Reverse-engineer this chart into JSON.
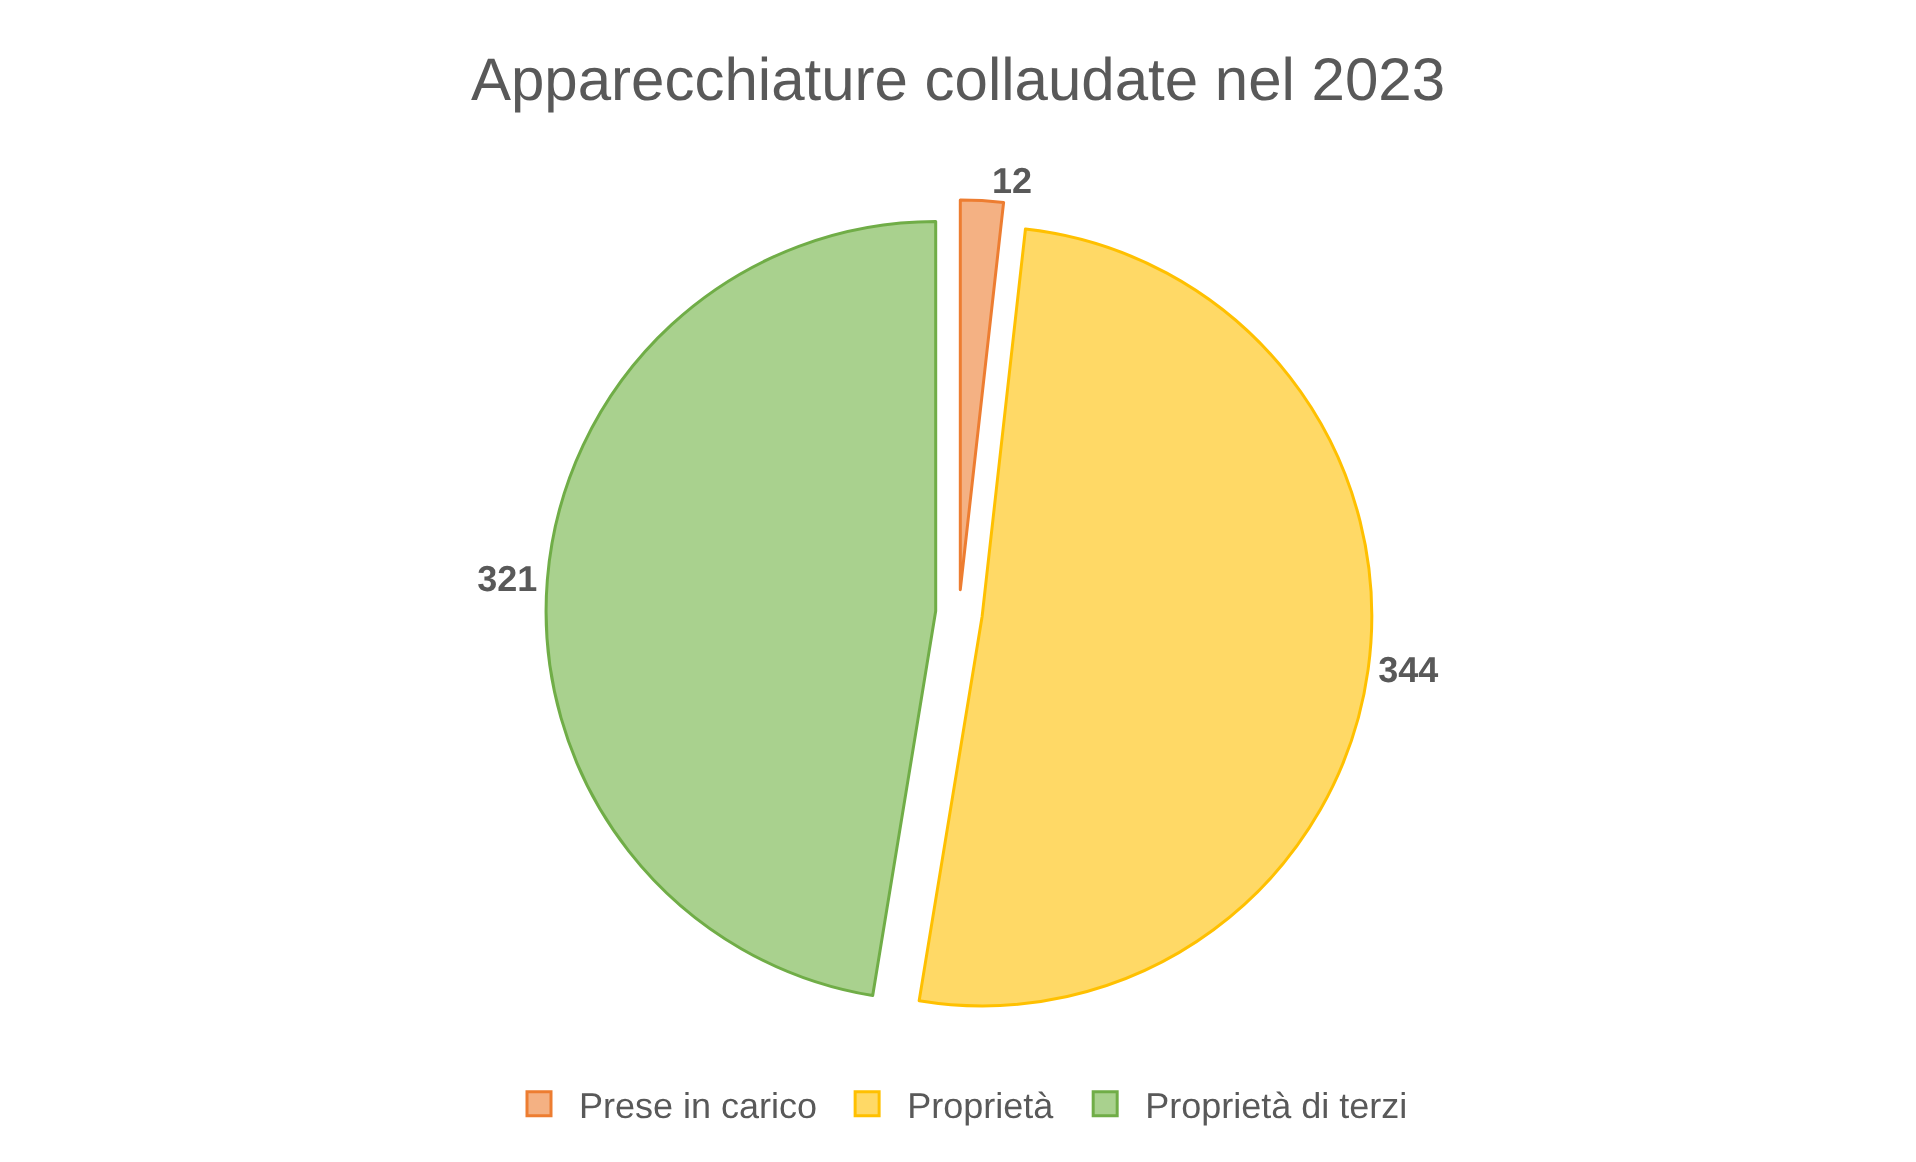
{
  "chart_data": {
    "type": "pie",
    "title": "Apparecchiature collaudate nel 2023",
    "categories": [
      "Prese in carico",
      "Proprietà",
      "Proprietà di terzi"
    ],
    "values": [
      12,
      344,
      321
    ],
    "colors": [
      "#f4b183",
      "#ffd966",
      "#a9d18e"
    ],
    "data_labels": true,
    "legend": "bottom"
  }
}
